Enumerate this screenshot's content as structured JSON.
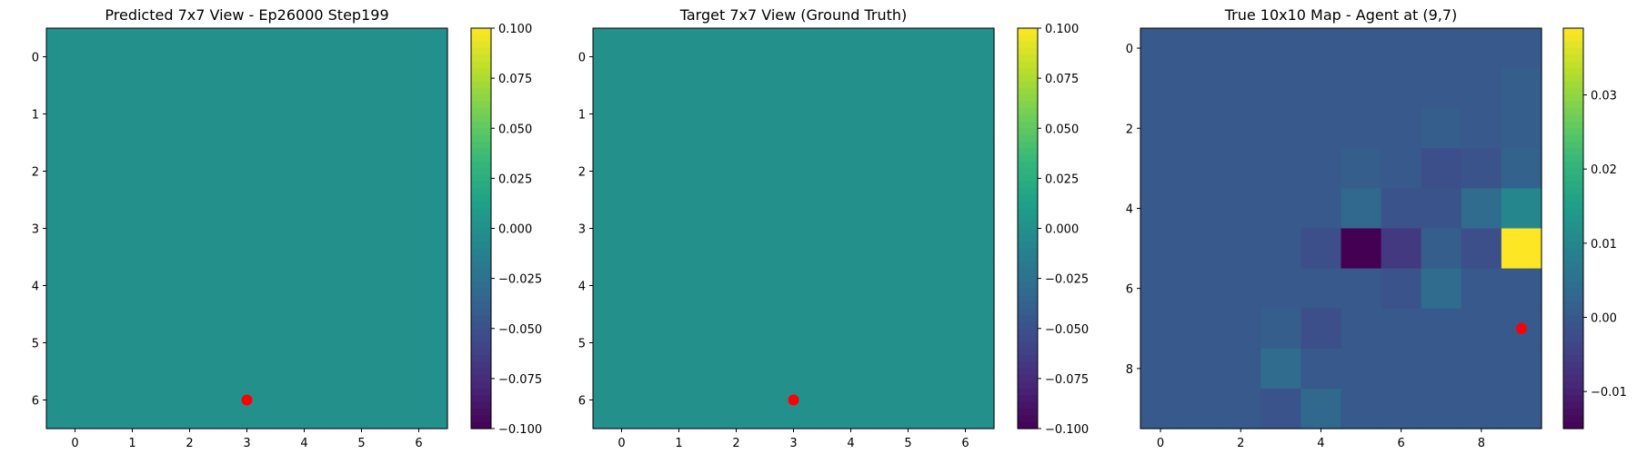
{
  "chart_data": [
    {
      "type": "heatmap",
      "title": "Predicted 7x7 View - Ep26000 Step199",
      "rows": 7,
      "cols": 7,
      "xticks": [
        0,
        1,
        2,
        3,
        4,
        5,
        6
      ],
      "yticks": [
        0,
        1,
        2,
        3,
        4,
        5,
        6
      ],
      "values": [
        [
          0,
          0,
          0,
          0,
          0,
          0,
          0
        ],
        [
          0,
          0,
          0,
          0,
          0,
          0,
          0
        ],
        [
          0,
          0,
          0,
          0,
          0,
          0,
          0
        ],
        [
          0,
          0,
          0,
          0,
          0,
          0,
          0
        ],
        [
          0,
          0,
          0,
          0,
          0,
          0,
          0
        ],
        [
          0,
          0,
          0,
          0,
          0,
          0,
          0
        ],
        [
          0,
          0,
          0,
          0,
          0,
          0,
          0
        ]
      ],
      "vmin": -0.1,
      "vmax": 0.1,
      "colorbar_ticks": [
        0.1,
        0.075,
        0.05,
        0.025,
        0.0,
        -0.025,
        -0.05,
        -0.075,
        -0.1
      ],
      "colorbar_tick_labels": [
        "0.100",
        "0.075",
        "0.050",
        "0.025",
        "0.000",
        "−0.025",
        "−0.050",
        "−0.075",
        "−0.100"
      ],
      "marker": {
        "x": 3,
        "y": 6,
        "color": "#ff0000"
      }
    },
    {
      "type": "heatmap",
      "title": "Target 7x7 View (Ground Truth)",
      "rows": 7,
      "cols": 7,
      "xticks": [
        0,
        1,
        2,
        3,
        4,
        5,
        6
      ],
      "yticks": [
        0,
        1,
        2,
        3,
        4,
        5,
        6
      ],
      "values": [
        [
          0,
          0,
          0,
          0,
          0,
          0,
          0
        ],
        [
          0,
          0,
          0,
          0,
          0,
          0,
          0
        ],
        [
          0,
          0,
          0,
          0,
          0,
          0,
          0
        ],
        [
          0,
          0,
          0,
          0,
          0,
          0,
          0
        ],
        [
          0,
          0,
          0,
          0,
          0,
          0,
          0
        ],
        [
          0,
          0,
          0,
          0,
          0,
          0,
          0
        ],
        [
          0,
          0,
          0,
          0,
          0,
          0,
          0
        ]
      ],
      "vmin": -0.1,
      "vmax": 0.1,
      "colorbar_ticks": [
        0.1,
        0.075,
        0.05,
        0.025,
        0.0,
        -0.025,
        -0.05,
        -0.075,
        -0.1
      ],
      "colorbar_tick_labels": [
        "0.100",
        "0.075",
        "0.050",
        "0.025",
        "0.000",
        "−0.025",
        "−0.050",
        "−0.075",
        "−0.100"
      ],
      "marker": {
        "x": 3,
        "y": 6,
        "color": "#ff0000"
      }
    },
    {
      "type": "heatmap",
      "title": "True 10x10 Map - Agent at (9,7)",
      "rows": 10,
      "cols": 10,
      "xticks": [
        0,
        2,
        4,
        6,
        8
      ],
      "yticks": [
        0,
        2,
        4,
        6,
        8
      ],
      "values": [
        [
          0,
          0,
          0,
          0,
          0,
          0,
          0,
          0,
          0,
          0
        ],
        [
          0,
          0,
          0,
          0,
          0,
          0,
          0,
          0,
          0,
          0.001
        ],
        [
          0,
          0,
          0,
          0,
          0,
          0,
          0,
          0.001,
          0,
          0.001
        ],
        [
          0,
          0,
          0,
          0,
          0,
          0.001,
          0,
          -0.002,
          -0.001,
          0.002
        ],
        [
          0,
          0,
          0,
          0,
          0,
          0.003,
          -0.001,
          -0.001,
          0.004,
          0.01
        ],
        [
          0,
          0,
          0,
          0,
          -0.002,
          -0.015,
          -0.006,
          0.001,
          -0.002,
          0.039
        ],
        [
          0,
          0,
          0,
          0,
          0,
          0,
          -0.001,
          0.004,
          0,
          0
        ],
        [
          0,
          0,
          0,
          0.001,
          -0.002,
          0,
          0,
          0,
          0,
          0
        ],
        [
          0,
          0,
          0,
          0.004,
          0,
          0,
          0,
          0,
          0,
          0
        ],
        [
          0,
          0,
          0,
          -0.001,
          0.003,
          0,
          0,
          0,
          0,
          0
        ]
      ],
      "vmin": -0.015,
      "vmax": 0.039,
      "colorbar_ticks": [
        0.03,
        0.02,
        0.01,
        0.0,
        -0.01
      ],
      "colorbar_tick_labels": [
        "0.03",
        "0.02",
        "0.01",
        "0.00",
        "−0.01"
      ],
      "marker": {
        "x": 9,
        "y": 7,
        "color": "#ff0000"
      }
    }
  ]
}
